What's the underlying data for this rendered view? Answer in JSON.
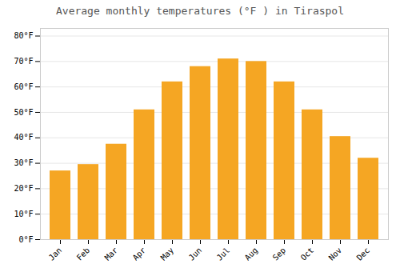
{
  "chart_data": {
    "type": "bar",
    "title": "Average monthly temperatures (°F ) in Tiraspol",
    "categories": [
      "Jan",
      "Feb",
      "Mar",
      "Apr",
      "May",
      "Jun",
      "Jul",
      "Aug",
      "Sep",
      "Oct",
      "Nov",
      "Dec"
    ],
    "values": [
      27,
      29.5,
      37.5,
      51,
      62,
      68,
      71,
      70,
      62,
      51,
      40.5,
      32
    ],
    "color": "#F5A623",
    "ylim": [
      0,
      83
    ],
    "yticks": [
      {
        "value": 0,
        "label": "0°F"
      },
      {
        "value": 10,
        "label": "10°F"
      },
      {
        "value": 20,
        "label": "20°F"
      },
      {
        "value": 30,
        "label": "30°F"
      },
      {
        "value": 40,
        "label": "40°F"
      },
      {
        "value": 50,
        "label": "50°F"
      },
      {
        "value": 60,
        "label": "60°F"
      },
      {
        "value": 70,
        "label": "70°F"
      },
      {
        "value": 80,
        "label": "80°F"
      }
    ],
    "grid": true
  }
}
